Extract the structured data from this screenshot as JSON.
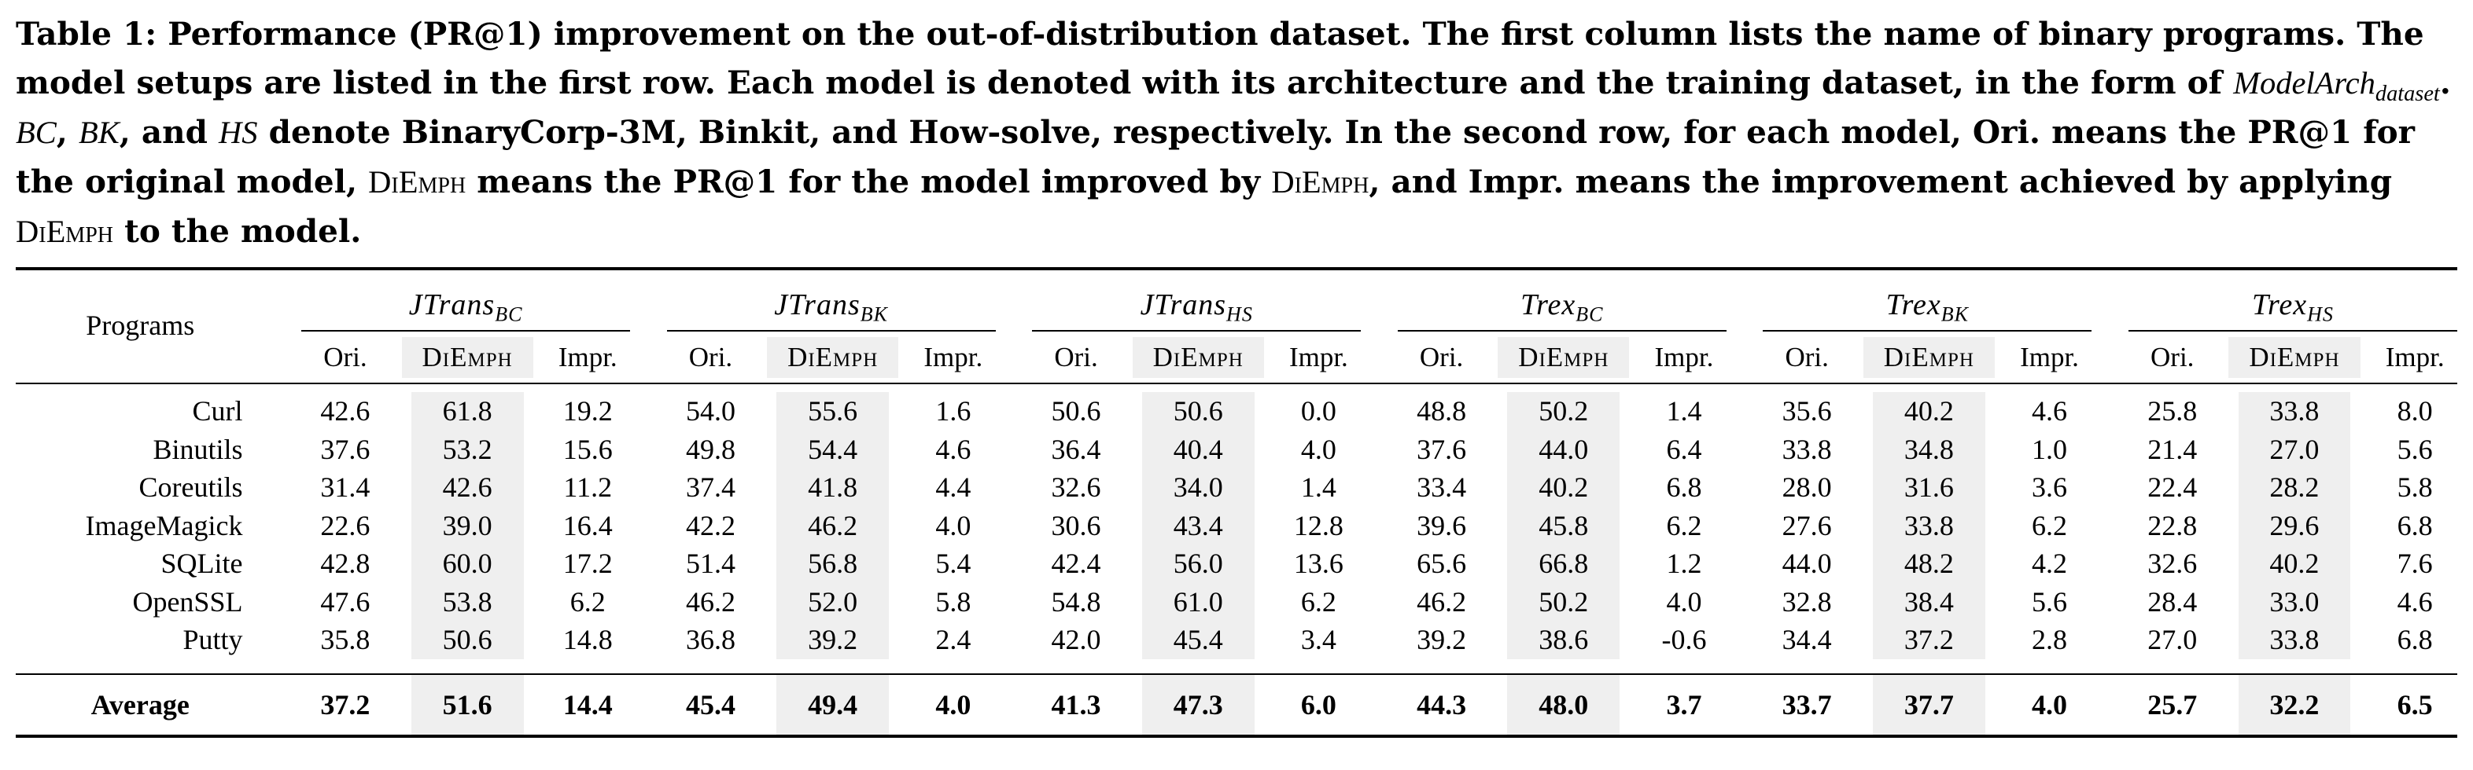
{
  "caption": {
    "part1": "Table 1: Performance (PR@1) improvement on the out-of-distribution dataset. The first column lists the name of binary programs. The model setups are listed in the first row. Each model is denoted with its architecture and the training dataset, in the form of ",
    "form_main": "ModelArch",
    "form_sub": "dataset",
    "part2": ". ",
    "bc": "BC",
    "sep1": ", ",
    "bk": "BK",
    "sep2": ", and ",
    "hs": "HS",
    "part3": " denote BinaryCorp-3M, Binkit, and How-solve, respectively. In the second row, for each model, Ori. means the PR@1 for the original model, ",
    "diemph1": "DiEmph",
    "part4": " means the PR@1 for the model improved by ",
    "diemph2": "DiEmph",
    "part5": ", and Impr. means the improvement achieved by applying ",
    "diemph3": "DiEmph",
    "part6": " to the model."
  },
  "table": {
    "programs_header": "Programs",
    "subheaders": [
      "Ori.",
      "DiEmph",
      "Impr."
    ],
    "models": [
      {
        "arch": "JTrans",
        "data": "BC"
      },
      {
        "arch": "JTrans",
        "data": "BK"
      },
      {
        "arch": "JTrans",
        "data": "HS"
      },
      {
        "arch": "Trex",
        "data": "BC"
      },
      {
        "arch": "Trex",
        "data": "BK"
      },
      {
        "arch": "Trex",
        "data": "HS"
      }
    ],
    "rows": [
      {
        "name": "Curl",
        "values": [
          "42.6",
          "61.8",
          "19.2",
          "54.0",
          "55.6",
          "1.6",
          "50.6",
          "50.6",
          "0.0",
          "48.8",
          "50.2",
          "1.4",
          "35.6",
          "40.2",
          "4.6",
          "25.8",
          "33.8",
          "8.0"
        ]
      },
      {
        "name": "Binutils",
        "values": [
          "37.6",
          "53.2",
          "15.6",
          "49.8",
          "54.4",
          "4.6",
          "36.4",
          "40.4",
          "4.0",
          "37.6",
          "44.0",
          "6.4",
          "33.8",
          "34.8",
          "1.0",
          "21.4",
          "27.0",
          "5.6"
        ]
      },
      {
        "name": "Coreutils",
        "values": [
          "31.4",
          "42.6",
          "11.2",
          "37.4",
          "41.8",
          "4.4",
          "32.6",
          "34.0",
          "1.4",
          "33.4",
          "40.2",
          "6.8",
          "28.0",
          "31.6",
          "3.6",
          "22.4",
          "28.2",
          "5.8"
        ]
      },
      {
        "name": "ImageMagick",
        "values": [
          "22.6",
          "39.0",
          "16.4",
          "42.2",
          "46.2",
          "4.0",
          "30.6",
          "43.4",
          "12.8",
          "39.6",
          "45.8",
          "6.2",
          "27.6",
          "33.8",
          "6.2",
          "22.8",
          "29.6",
          "6.8"
        ]
      },
      {
        "name": "SQLite",
        "values": [
          "42.8",
          "60.0",
          "17.2",
          "51.4",
          "56.8",
          "5.4",
          "42.4",
          "56.0",
          "13.6",
          "65.6",
          "66.8",
          "1.2",
          "44.0",
          "48.2",
          "4.2",
          "32.6",
          "40.2",
          "7.6"
        ]
      },
      {
        "name": "OpenSSL",
        "values": [
          "47.6",
          "53.8",
          "6.2",
          "46.2",
          "52.0",
          "5.8",
          "54.8",
          "61.0",
          "6.2",
          "46.2",
          "50.2",
          "4.0",
          "32.8",
          "38.4",
          "5.6",
          "28.4",
          "33.0",
          "4.6"
        ]
      },
      {
        "name": "Putty",
        "values": [
          "35.8",
          "50.6",
          "14.8",
          "36.8",
          "39.2",
          "2.4",
          "42.0",
          "45.4",
          "3.4",
          "39.2",
          "38.6",
          "-0.6",
          "34.4",
          "37.2",
          "2.8",
          "27.0",
          "33.8",
          "6.8"
        ]
      }
    ],
    "average": {
      "name": "Average",
      "values": [
        "37.2",
        "51.6",
        "14.4",
        "45.4",
        "49.4",
        "4.0",
        "41.3",
        "47.3",
        "6.0",
        "44.3",
        "48.0",
        "3.7",
        "33.7",
        "37.7",
        "4.0",
        "25.7",
        "32.2",
        "6.5"
      ]
    }
  }
}
